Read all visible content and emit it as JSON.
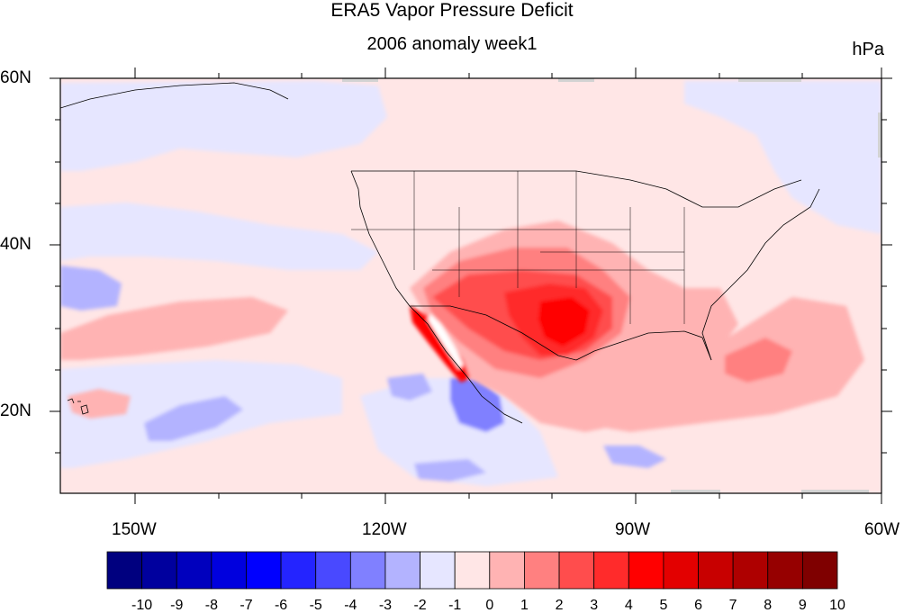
{
  "title": "ERA5 Vapor Pressure Deficit",
  "subtitle": "2006 anomaly week1",
  "units": "hPa",
  "lat_labels": [
    "60N",
    "40N",
    "20N"
  ],
  "lon_labels": [
    "150W",
    "120W",
    "90W",
    "60W"
  ],
  "colorbar": {
    "labels": [
      "-10",
      "-9",
      "-8",
      "-7",
      "-6",
      "-5",
      "-4",
      "-3",
      "-2",
      "-1",
      "0",
      "1",
      "2",
      "3",
      "4",
      "5",
      "6",
      "7",
      "8",
      "9",
      "10"
    ],
    "colors": [
      "#00007f",
      "#00009e",
      "#0000be",
      "#0000de",
      "#0000ff",
      "#2424ff",
      "#4949ff",
      "#8080ff",
      "#b3b3ff",
      "#e6e6ff",
      "#ffe6e6",
      "#ffb3b3",
      "#ff8080",
      "#ff4d4d",
      "#ff2b2b",
      "#ff0000",
      "#e30000",
      "#c80000",
      "#ae0000",
      "#960000",
      "#7f0000"
    ]
  },
  "map": {
    "extent": {
      "lon": [
        -160,
        -61
      ],
      "lat": [
        10,
        60
      ]
    },
    "ocean_background": "#ffe6e6"
  }
}
